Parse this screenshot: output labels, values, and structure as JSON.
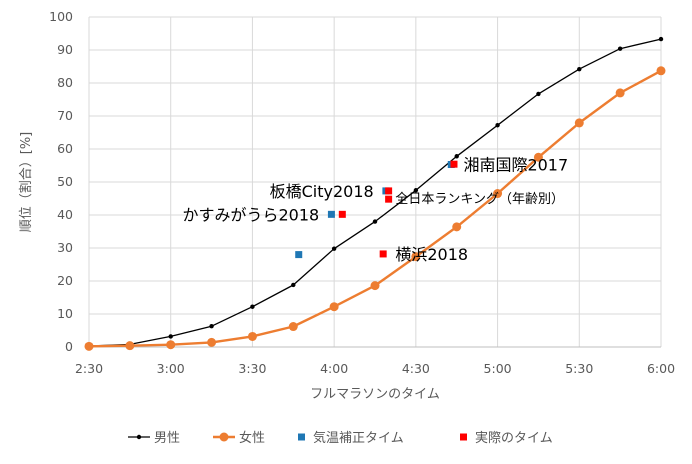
{
  "chart_data": {
    "type": "line",
    "xlabel": "フルマラソンのタイム",
    "ylabel": "順位（割合）[%]",
    "x_unit": "minutes",
    "xlim": [
      150,
      360
    ],
    "ylim": [
      0,
      100
    ],
    "x_ticks": [
      {
        "value": 150,
        "label": "2:30"
      },
      {
        "value": 180,
        "label": "3:00"
      },
      {
        "value": 210,
        "label": "3:30"
      },
      {
        "value": 240,
        "label": "4:00"
      },
      {
        "value": 270,
        "label": "4:30"
      },
      {
        "value": 300,
        "label": "5:00"
      },
      {
        "value": 330,
        "label": "5:30"
      },
      {
        "value": 360,
        "label": "6:00"
      }
    ],
    "y_ticks": [
      0,
      10,
      20,
      30,
      40,
      50,
      60,
      70,
      80,
      90,
      100
    ],
    "series": [
      {
        "name": "男性",
        "color": "#000000",
        "marker": "dot",
        "points": [
          [
            150,
            0.3
          ],
          [
            165,
            0.8
          ],
          [
            180,
            3.2
          ],
          [
            195,
            6.3
          ],
          [
            210,
            12.2
          ],
          [
            225,
            18.8
          ],
          [
            240,
            29.8
          ],
          [
            255,
            38
          ],
          [
            270,
            47.5
          ],
          [
            285,
            57.8
          ],
          [
            300,
            67.2
          ],
          [
            315,
            76.7
          ],
          [
            330,
            84.2
          ],
          [
            345,
            90.4
          ],
          [
            360,
            93.3
          ]
        ]
      },
      {
        "name": "女性",
        "color": "#ED7D31",
        "marker": "circle",
        "points": [
          [
            150,
            0.2
          ],
          [
            165,
            0.4
          ],
          [
            180,
            0.7
          ],
          [
            195,
            1.4
          ],
          [
            210,
            3.2
          ],
          [
            225,
            6.2
          ],
          [
            240,
            12.2
          ],
          [
            255,
            18.6
          ],
          [
            270,
            27.4
          ],
          [
            285,
            36.4
          ],
          [
            300,
            46.5
          ],
          [
            315,
            57.5
          ],
          [
            330,
            67.9
          ],
          [
            345,
            77
          ],
          [
            360,
            83.7
          ]
        ]
      },
      {
        "name": "気温補正タイム",
        "color": "#1F77B4",
        "marker": "square",
        "points": [
          [
            227,
            28
          ],
          [
            239,
            40.2
          ],
          [
            259,
            47.3
          ],
          [
            283,
            55.3
          ]
        ]
      },
      {
        "name": "実際のタイム",
        "color": "#FF0000",
        "marker": "square",
        "points": [
          [
            243,
            40.2
          ],
          [
            258,
            28.2
          ],
          [
            260,
            47.3
          ],
          [
            260,
            44.8
          ],
          [
            284,
            55.4
          ]
        ]
      }
    ],
    "annotations": [
      {
        "text": "湘南国際2017",
        "x": 286,
        "y": 55.3,
        "style": "large"
      },
      {
        "text": "板橋City2018",
        "x": 256,
        "y": 47.3,
        "style": "large",
        "anchor": "end"
      },
      {
        "text": "全日本ランキング（年齢別）",
        "x": 261,
        "y": 44.8,
        "style": "small"
      },
      {
        "text": "かすみがうら2018",
        "x": 236,
        "y": 40.2,
        "style": "large",
        "anchor": "end"
      },
      {
        "text": "横浜2018",
        "x": 261,
        "y": 28.2,
        "style": "large"
      }
    ],
    "legend": {
      "position": "bottom"
    },
    "grid": true
  }
}
